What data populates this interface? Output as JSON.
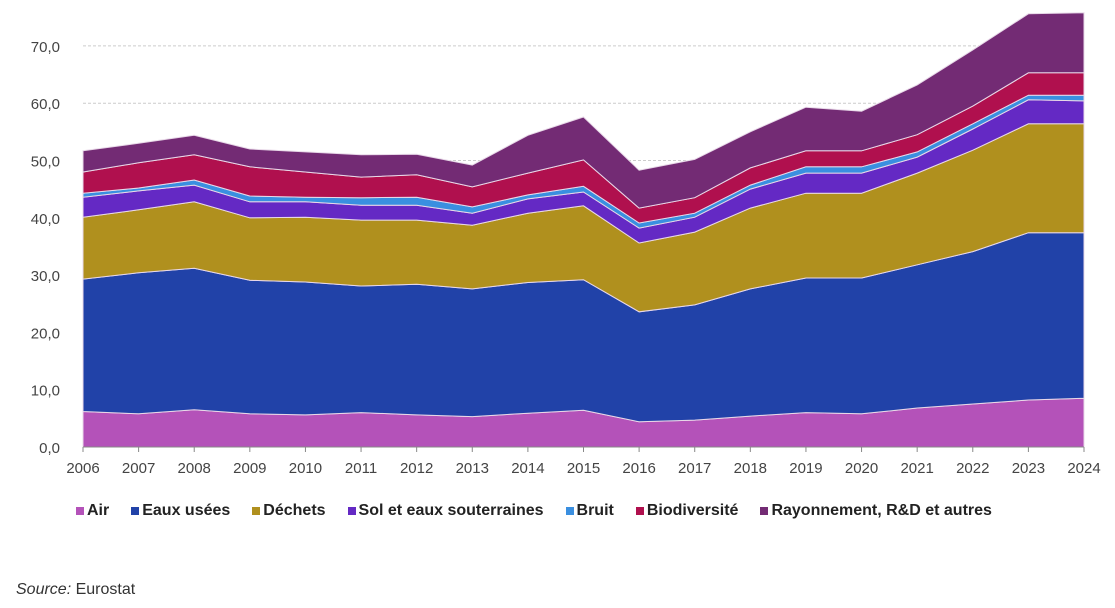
{
  "chart_data": {
    "type": "area",
    "stacked": true,
    "title": "",
    "xlabel": "",
    "ylabel": "",
    "x": [
      2006,
      2007,
      2008,
      2009,
      2010,
      2011,
      2012,
      2013,
      2014,
      2015,
      2016,
      2017,
      2018,
      2019,
      2020,
      2021,
      2022,
      2023,
      2024
    ],
    "ylim": [
      0,
      75
    ],
    "yticks": [
      0,
      10,
      20,
      30,
      40,
      50,
      60,
      70
    ],
    "ytick_labels": [
      "0,0",
      "10,0",
      "20,0",
      "30,0",
      "40,0",
      "50,0",
      "60,0",
      "70,0"
    ],
    "xtick_labels": [
      "2006",
      "2007",
      "2008",
      "2009",
      "2010",
      "2011",
      "2012",
      "2013",
      "2014",
      "2015",
      "2016",
      "2017",
      "2018",
      "2019",
      "2020",
      "2021",
      "2022",
      "2023",
      "2024"
    ],
    "grid": "horizontal dashed",
    "legend_position": "bottom",
    "series": [
      {
        "name": "Air",
        "color": "#b452b9",
        "values": [
          6.2,
          5.8,
          6.5,
          5.8,
          5.6,
          6.0,
          5.6,
          5.3,
          5.9,
          6.4,
          4.4,
          4.7,
          5.4,
          6.0,
          5.8,
          6.8,
          7.5,
          8.2,
          8.5
        ]
      },
      {
        "name": "Eaux usées",
        "color": "#2142a8",
        "values": [
          23.1,
          24.6,
          24.7,
          23.3,
          23.2,
          22.1,
          22.8,
          22.3,
          22.8,
          22.8,
          19.2,
          20.1,
          22.2,
          23.5,
          23.7,
          25.0,
          26.6,
          29.2,
          28.9
        ]
      },
      {
        "name": "Déchets",
        "color": "#b0901e",
        "values": [
          10.8,
          11.0,
          11.6,
          10.9,
          11.3,
          11.5,
          11.2,
          11.1,
          12.1,
          12.9,
          12.0,
          12.7,
          14.1,
          14.8,
          14.8,
          16.0,
          17.7,
          19.0,
          19.0
        ]
      },
      {
        "name": "Sol et eaux souterraines",
        "color": "#6429c4",
        "values": [
          3.5,
          3.3,
          2.9,
          2.8,
          2.7,
          2.6,
          2.6,
          2.1,
          2.5,
          2.4,
          2.6,
          2.6,
          3.3,
          3.5,
          3.5,
          2.8,
          3.7,
          4.2,
          4.0
        ]
      },
      {
        "name": "Bruit",
        "color": "#3a8fe0",
        "values": [
          0.7,
          0.5,
          0.9,
          1.0,
          0.8,
          1.3,
          1.4,
          1.1,
          0.7,
          1.0,
          0.9,
          0.7,
          0.7,
          1.1,
          1.1,
          0.9,
          0.9,
          0.8,
          1.0
        ]
      },
      {
        "name": "Biodiversité",
        "color": "#b0104e",
        "values": [
          3.7,
          4.4,
          4.4,
          5.1,
          4.4,
          3.6,
          3.9,
          3.5,
          3.8,
          4.6,
          2.6,
          2.7,
          3.0,
          2.8,
          2.8,
          3.0,
          3.1,
          3.9,
          3.9
        ]
      },
      {
        "name": "Rayonnement, R&D et autres",
        "color": "#732b74",
        "values": [
          3.7,
          3.4,
          3.4,
          3.1,
          3.5,
          3.9,
          3.6,
          3.8,
          6.6,
          7.5,
          6.6,
          6.7,
          6.3,
          7.6,
          6.9,
          8.7,
          9.8,
          10.3,
          10.5
        ]
      }
    ]
  },
  "source": {
    "label": "Source:",
    "value": " Eurostat"
  }
}
